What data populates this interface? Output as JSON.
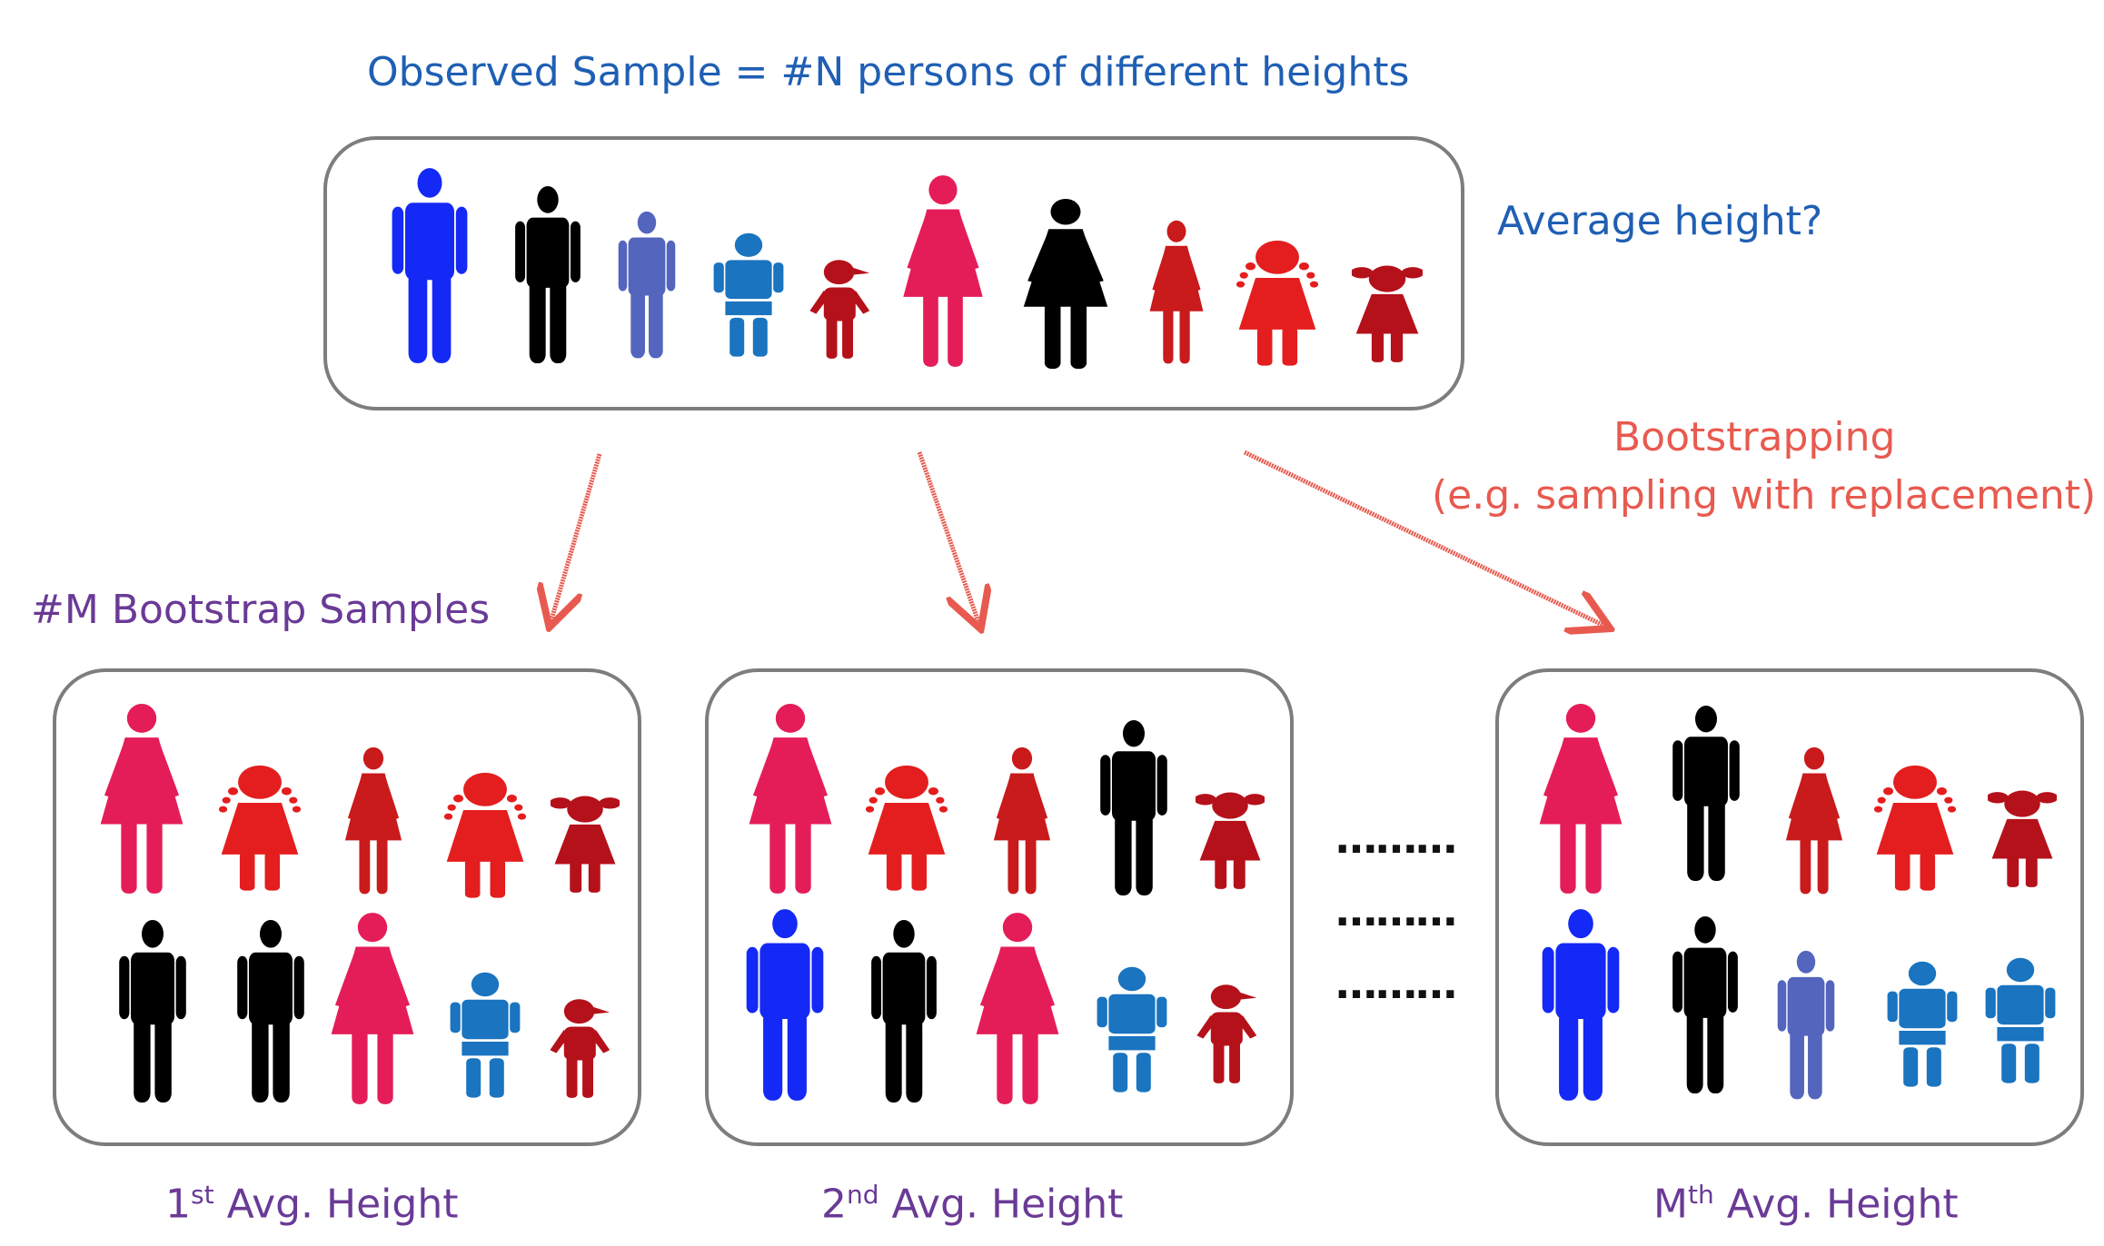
{
  "title": "Observed Sample = #N persons of different heights",
  "question": "Average height?",
  "method": {
    "line1": "Bootstrapping",
    "line2": "(e.g. sampling with replacement)"
  },
  "samples_label": "#M Bootstrap Samples",
  "ellipsis": "……… ",
  "results": [
    {
      "ord": "1",
      "sup": "st",
      "text": " Avg. Height"
    },
    {
      "ord": "2",
      "sup": "nd",
      "text": " Avg. Height"
    },
    {
      "ord": "M",
      "sup": "th",
      "text": " Avg. Height"
    }
  ],
  "colors": {
    "blue": "#1429f5",
    "black": "#000000",
    "slate": "#5465bd",
    "teal": "#1a74bf",
    "darkred": "#b5111a",
    "pink": "#e41d58",
    "red": "#e41e1e",
    "brick": "#c91a1c",
    "title_text": "#1f5fb4",
    "method_text": "#e85a4f",
    "sample_text": "#6a3a96"
  },
  "person_types": [
    "man",
    "man",
    "man",
    "boy",
    "toddler",
    "woman",
    "woman",
    "woman",
    "girl",
    "pigtail-girl"
  ]
}
